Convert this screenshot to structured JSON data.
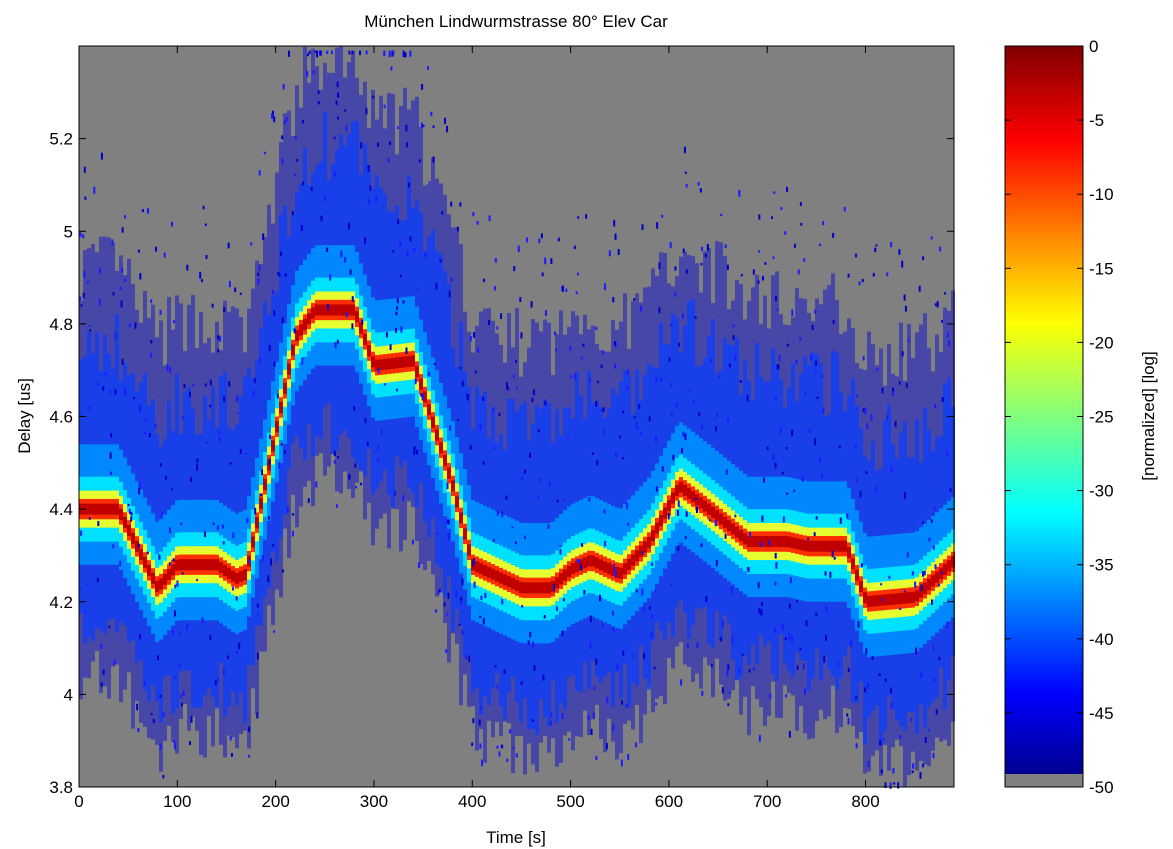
{
  "chart_data": {
    "type": "heatmap",
    "title": "München Lindwurmstrasse 80° Elev Car",
    "xlabel": "Time [s]",
    "ylabel": "Delay [us]",
    "xlim": [
      0,
      890
    ],
    "ylim": [
      3.8,
      5.4
    ],
    "x_ticks": [
      "0",
      "100",
      "200",
      "300",
      "400",
      "500",
      "600",
      "700",
      "800"
    ],
    "y_ticks": [
      "3.8",
      "4",
      "4.2",
      "4.4",
      "4.6",
      "4.8",
      "5",
      "5.2"
    ],
    "colorbar": {
      "label": "[normalized] [log]",
      "range": [
        -50,
        0
      ],
      "ticks": [
        "0",
        "-5",
        "-10",
        "-15",
        "-20",
        "-25",
        "-30",
        "-35",
        "-40",
        "-45",
        "-50"
      ],
      "colormap": "jet",
      "floor_color": "#808080"
    },
    "background_color": "#808080",
    "peak_delay_track": {
      "time_s": [
        0,
        40,
        80,
        100,
        140,
        160,
        170,
        220,
        240,
        280,
        300,
        340,
        380,
        400,
        450,
        480,
        500,
        520,
        550,
        580,
        610,
        640,
        680,
        720,
        740,
        780,
        800,
        850,
        880,
        890
      ],
      "delay_us": [
        4.4,
        4.4,
        4.23,
        4.28,
        4.28,
        4.25,
        4.26,
        4.77,
        4.83,
        4.83,
        4.71,
        4.72,
        4.45,
        4.28,
        4.23,
        4.23,
        4.27,
        4.29,
        4.26,
        4.33,
        4.45,
        4.4,
        4.33,
        4.33,
        4.32,
        4.32,
        4.2,
        4.21,
        4.27,
        4.29
      ]
    }
  }
}
